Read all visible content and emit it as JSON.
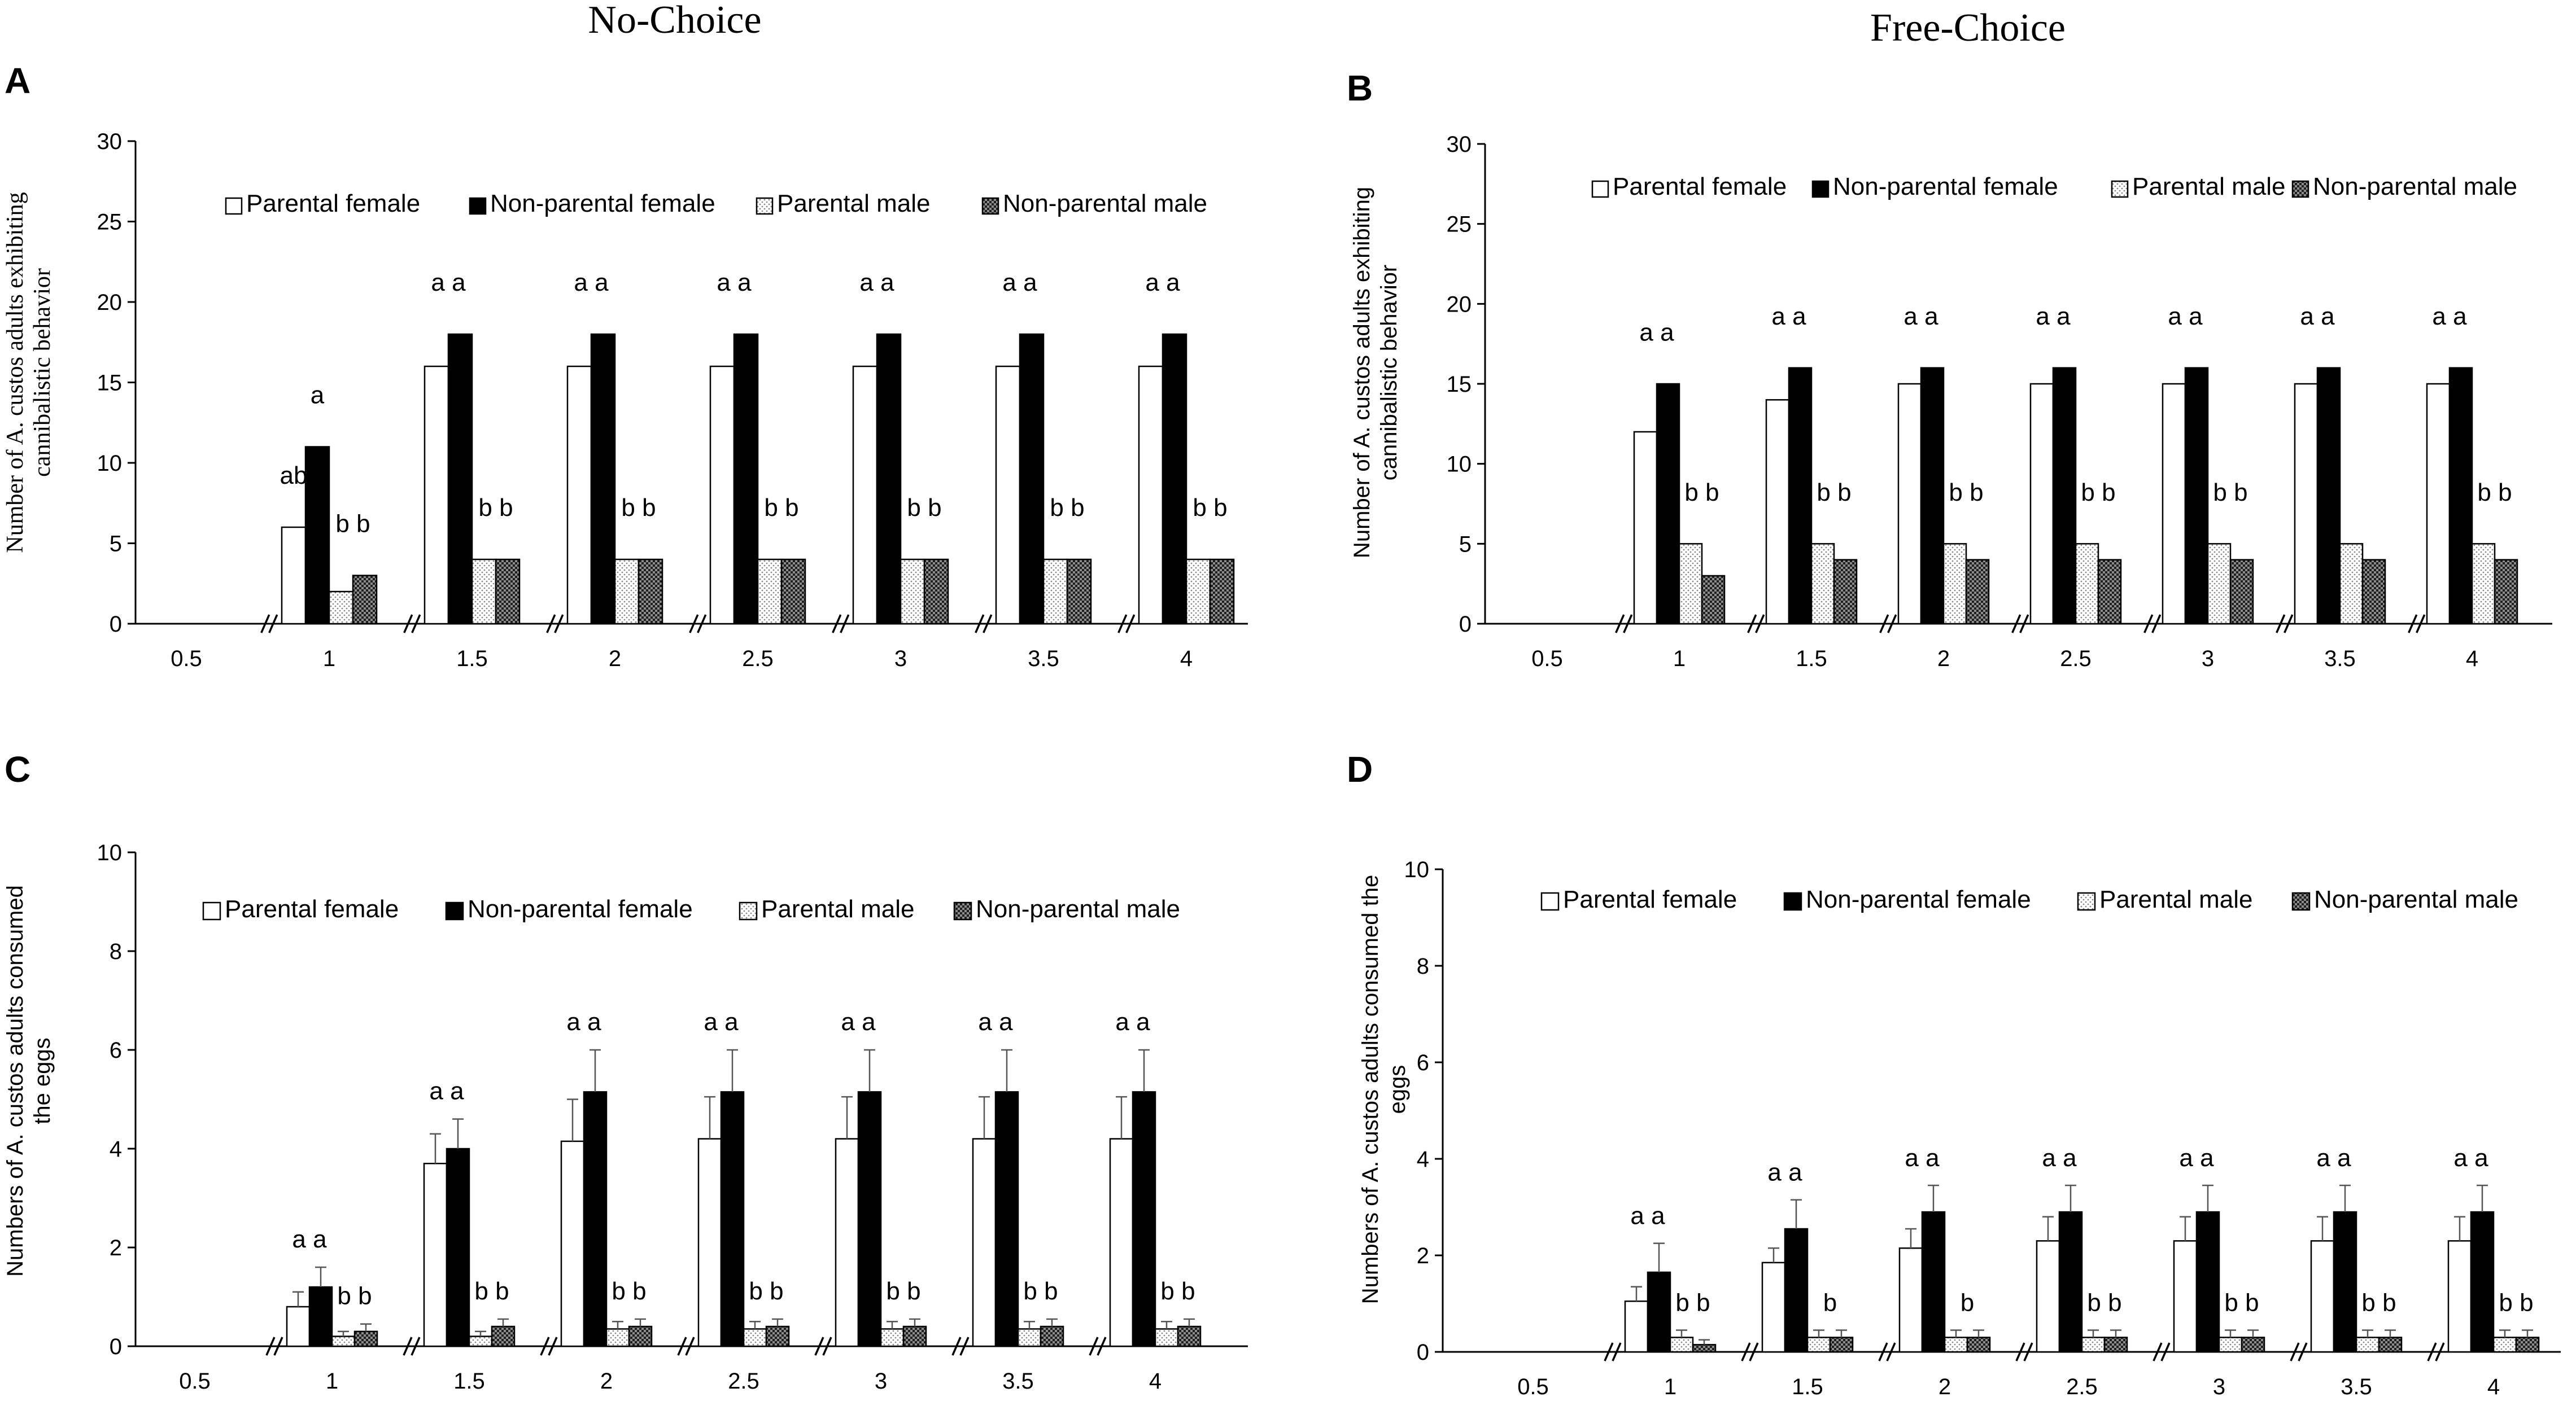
{
  "figure": {
    "column_titles": [
      "No-Choice",
      "Free-Choice"
    ]
  },
  "colors": {
    "black": "#000000",
    "white": "#ffffff",
    "dotted_light": "#d9d9d9",
    "checker_dark": "#3a3a3a"
  },
  "chart_data": [
    {
      "panel": "A",
      "type": "bar",
      "title": "No-Choice",
      "ylabel": "Number of A. custos adults exhibiting cannibalistic behavior",
      "ylabel_lines": [
        "Number of A. custos adults exhibiting",
        "cannibalistic behavior"
      ],
      "xlabel": "",
      "ylim": [
        0,
        30
      ],
      "yticks": [
        0,
        5,
        10,
        15,
        20,
        25,
        30
      ],
      "categories": [
        "0.5",
        "1",
        "1.5",
        "2",
        "2.5",
        "3",
        "3.5",
        "4"
      ],
      "legend_position": "top",
      "error_bars": false,
      "series": [
        {
          "name": "Parental female",
          "pattern": "white",
          "values": [
            0,
            6,
            16,
            16,
            16,
            16,
            16,
            16
          ]
        },
        {
          "name": "Non-parental female",
          "pattern": "black",
          "values": [
            0,
            11,
            18,
            18,
            18,
            18,
            18,
            18
          ]
        },
        {
          "name": "Parental male",
          "pattern": "dotted",
          "values": [
            0,
            2,
            4,
            4,
            4,
            4,
            4,
            4
          ]
        },
        {
          "name": "Non-parental male",
          "pattern": "checker",
          "values": [
            0,
            3,
            4,
            4,
            4,
            4,
            4,
            4
          ]
        }
      ],
      "annotations": [
        {
          "category": "1",
          "text": "ab",
          "over": "Parental female"
        },
        {
          "category": "1",
          "text": "a",
          "over": "Non-parental female"
        },
        {
          "category": "1",
          "text": "b b",
          "over": "males"
        },
        {
          "category": "1.5",
          "text": "a a",
          "over": "females"
        },
        {
          "category": "1.5",
          "text": "b b",
          "over": "males"
        },
        {
          "category": "2",
          "text": "a a",
          "over": "females"
        },
        {
          "category": "2",
          "text": "b b",
          "over": "males"
        },
        {
          "category": "2.5",
          "text": "a a",
          "over": "females"
        },
        {
          "category": "2.5",
          "text": "b b",
          "over": "males"
        },
        {
          "category": "3",
          "text": "a a",
          "over": "females"
        },
        {
          "category": "3",
          "text": "b b",
          "over": "males"
        },
        {
          "category": "3.5",
          "text": "a a",
          "over": "females"
        },
        {
          "category": "3.5",
          "text": "b b",
          "over": "males"
        },
        {
          "category": "4",
          "text": "a a",
          "over": "females"
        },
        {
          "category": "4",
          "text": "b b",
          "over": "males"
        }
      ]
    },
    {
      "panel": "B",
      "type": "bar",
      "title": "Free-Choice",
      "ylabel": "Number of A. custos adults exhibiting cannibalistic behavior",
      "ylabel_lines": [
        "Number of A. custos adults exhibiting",
        "cannibalistic behavior"
      ],
      "xlabel": "",
      "ylim": [
        0,
        30
      ],
      "yticks": [
        0,
        5,
        10,
        15,
        20,
        25,
        30
      ],
      "categories": [
        "0.5",
        "1",
        "1.5",
        "2",
        "2.5",
        "3",
        "3.5",
        "4"
      ],
      "legend_position": "top",
      "error_bars": false,
      "series": [
        {
          "name": "Parental female",
          "pattern": "white",
          "values": [
            0,
            12,
            14,
            15,
            15,
            15,
            15,
            15
          ]
        },
        {
          "name": "Non-parental female",
          "pattern": "black",
          "values": [
            0,
            15,
            16,
            16,
            16,
            16,
            16,
            16
          ]
        },
        {
          "name": "Parental male",
          "pattern": "dotted",
          "values": [
            0,
            5,
            5,
            5,
            5,
            5,
            5,
            5
          ]
        },
        {
          "name": "Non-parental male",
          "pattern": "checker",
          "values": [
            0,
            3,
            4,
            4,
            4,
            4,
            4,
            4
          ]
        }
      ],
      "annotations": [
        {
          "category": "1",
          "text": "a a",
          "over": "females"
        },
        {
          "category": "1",
          "text": "b b",
          "over": "males"
        },
        {
          "category": "1.5",
          "text": "a a",
          "over": "females"
        },
        {
          "category": "1.5",
          "text": "b b",
          "over": "males"
        },
        {
          "category": "2",
          "text": "a a",
          "over": "females"
        },
        {
          "category": "2",
          "text": "b b",
          "over": "males"
        },
        {
          "category": "2.5",
          "text": "a a",
          "over": "females"
        },
        {
          "category": "2.5",
          "text": "b b",
          "over": "males"
        },
        {
          "category": "3",
          "text": "a a",
          "over": "females"
        },
        {
          "category": "3",
          "text": "b b",
          "over": "males"
        },
        {
          "category": "3.5",
          "text": "a a",
          "over": "females"
        },
        {
          "category": "4",
          "text": "a a",
          "over": "females"
        },
        {
          "category": "4",
          "text": "b b",
          "over": "males"
        }
      ]
    },
    {
      "panel": "C",
      "type": "bar",
      "title": "",
      "ylabel": "Numbers of A. custos adults consumed the eggs",
      "ylabel_lines": [
        "Numbers of A. custos adults consumed",
        "the eggs"
      ],
      "xlabel": "",
      "ylim": [
        0,
        10
      ],
      "yticks": [
        0,
        2,
        4,
        6,
        8,
        10
      ],
      "categories": [
        "0.5",
        "1",
        "1.5",
        "2",
        "2.5",
        "3",
        "3.5",
        "4"
      ],
      "legend_position": "top",
      "error_bars": true,
      "series": [
        {
          "name": "Parental female",
          "pattern": "white",
          "values": [
            0,
            0.8,
            3.7,
            4.15,
            4.2,
            4.2,
            4.2,
            4.2
          ],
          "errors": [
            0,
            0.3,
            0.6,
            0.85,
            0.85,
            0.85,
            0.85,
            0.85
          ]
        },
        {
          "name": "Non-parental female",
          "pattern": "black",
          "values": [
            0,
            1.2,
            4.0,
            5.15,
            5.15,
            5.15,
            5.15,
            5.15
          ],
          "errors": [
            0,
            0.4,
            0.6,
            0.85,
            0.85,
            0.85,
            0.85,
            0.85
          ]
        },
        {
          "name": "Parental male",
          "pattern": "dotted",
          "values": [
            0,
            0.2,
            0.2,
            0.35,
            0.35,
            0.35,
            0.35,
            0.35
          ],
          "errors": [
            0,
            0.1,
            0.1,
            0.15,
            0.15,
            0.15,
            0.15,
            0.15
          ]
        },
        {
          "name": "Non-parental male",
          "pattern": "checker",
          "values": [
            0,
            0.3,
            0.4,
            0.4,
            0.4,
            0.4,
            0.4,
            0.4
          ],
          "errors": [
            0,
            0.15,
            0.15,
            0.15,
            0.15,
            0.15,
            0.15,
            0.15
          ]
        }
      ],
      "annotations": [
        {
          "category": "1",
          "text": "a a",
          "over": "females"
        },
        {
          "category": "1",
          "text": "b b",
          "over": "males"
        },
        {
          "category": "1.5",
          "text": "a a",
          "over": "females"
        },
        {
          "category": "1.5",
          "text": "b b",
          "over": "males"
        },
        {
          "category": "2",
          "text": "a a",
          "over": "females"
        },
        {
          "category": "2",
          "text": "b b",
          "over": "males"
        },
        {
          "category": "2.5",
          "text": "a a",
          "over": "females"
        },
        {
          "category": "2.5",
          "text": "b b",
          "over": "males"
        },
        {
          "category": "3",
          "text": "a a",
          "over": "females"
        },
        {
          "category": "3",
          "text": "b b",
          "over": "males"
        },
        {
          "category": "3.5",
          "text": "a a",
          "over": "females"
        },
        {
          "category": "3.5",
          "text": "b b",
          "over": "males"
        },
        {
          "category": "4",
          "text": "a a",
          "over": "females"
        },
        {
          "category": "4",
          "text": "b b",
          "over": "males"
        }
      ]
    },
    {
      "panel": "D",
      "type": "bar",
      "title": "",
      "ylabel": "Numbers of A. custos adults consumed the eggs",
      "ylabel_lines": [
        "Numbers of A. custos adults consumed  the",
        "eggs"
      ],
      "xlabel": "",
      "ylim": [
        0,
        10
      ],
      "yticks": [
        0,
        2,
        4,
        6,
        8,
        10
      ],
      "categories": [
        "0.5",
        "1",
        "1.5",
        "2",
        "2.5",
        "3",
        "3.5",
        "4"
      ],
      "legend_position": "top",
      "error_bars": true,
      "series": [
        {
          "name": "Parental female",
          "pattern": "white",
          "values": [
            0,
            1.05,
            1.85,
            2.15,
            2.3,
            2.3,
            2.3,
            2.3
          ],
          "errors": [
            0,
            0.3,
            0.3,
            0.4,
            0.5,
            0.5,
            0.5,
            0.5
          ]
        },
        {
          "name": "Non-parental female",
          "pattern": "black",
          "values": [
            0,
            1.65,
            2.55,
            2.9,
            2.9,
            2.9,
            2.9,
            2.9
          ],
          "errors": [
            0,
            0.6,
            0.6,
            0.55,
            0.55,
            0.55,
            0.55,
            0.55
          ]
        },
        {
          "name": "Parental male",
          "pattern": "dotted",
          "values": [
            0,
            0.3,
            0.3,
            0.3,
            0.3,
            0.3,
            0.3,
            0.3
          ],
          "errors": [
            0,
            0.15,
            0.15,
            0.15,
            0.15,
            0.15,
            0.15,
            0.15
          ]
        },
        {
          "name": "Non-parental male",
          "pattern": "checker",
          "values": [
            0,
            0.15,
            0.3,
            0.3,
            0.3,
            0.3,
            0.3,
            0.3
          ],
          "errors": [
            0,
            0.1,
            0.15,
            0.15,
            0.15,
            0.15,
            0.15,
            0.15
          ]
        }
      ],
      "annotations": [
        {
          "category": "1",
          "text": "a a",
          "over": "females"
        },
        {
          "category": "1",
          "text": "b b",
          "over": "males"
        },
        {
          "category": "1.5",
          "text": "a a",
          "over": "females"
        },
        {
          "category": "1.5",
          "text": "b",
          "over": "males"
        },
        {
          "category": "2",
          "text": "a a",
          "over": "females"
        },
        {
          "category": "2",
          "text": "b",
          "over": "males"
        },
        {
          "category": "2.5",
          "text": "a a",
          "over": "females"
        },
        {
          "category": "2.5",
          "text": "b b",
          "over": "males"
        },
        {
          "category": "3",
          "text": "a a",
          "over": "females"
        },
        {
          "category": "3",
          "text": "b b",
          "over": "males"
        },
        {
          "category": "3.5",
          "text": "a a",
          "over": "females"
        },
        {
          "category": "3.5",
          "text": "b b",
          "over": "males"
        },
        {
          "category": "4",
          "text": "a a",
          "over": "females"
        },
        {
          "category": "4",
          "text": "b b",
          "over": "males"
        }
      ]
    }
  ]
}
